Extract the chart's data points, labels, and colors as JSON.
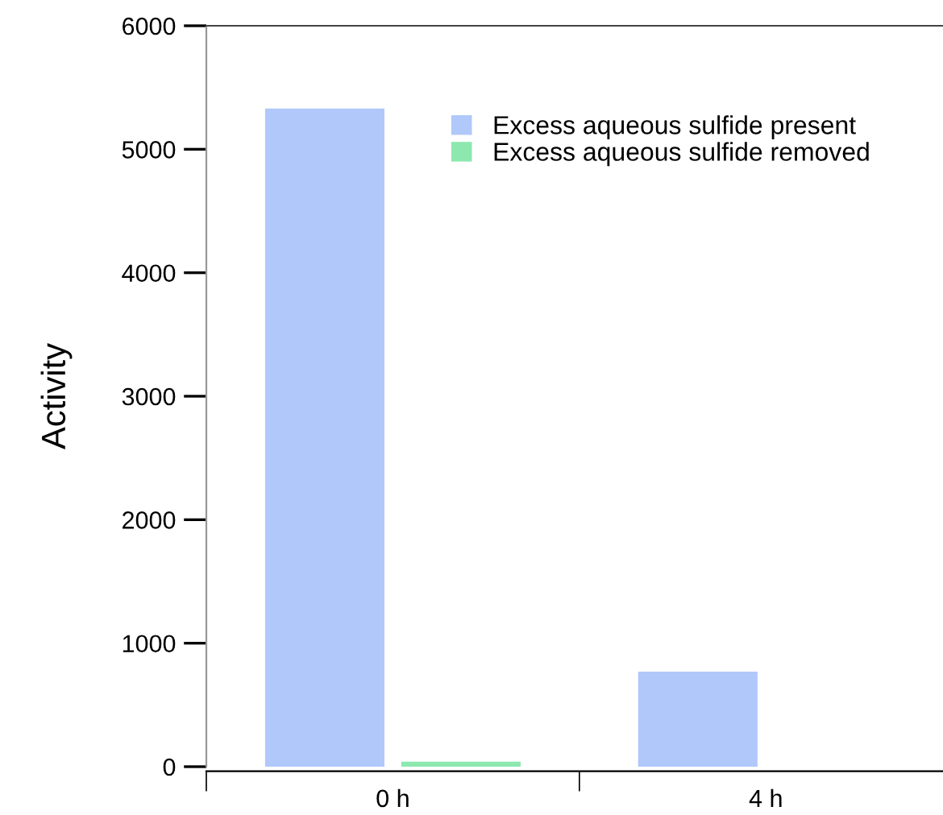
{
  "chart_data": {
    "type": "bar",
    "ylabel": "Activity",
    "categories": [
      "0 h",
      "4 h"
    ],
    "series": [
      {
        "name": "Excess aqueous sulfide present",
        "color": "#b0c8fa",
        "values": [
          5330,
          770
        ]
      },
      {
        "name": "Excess aqueous sulfide removed",
        "color": "#8de8b0",
        "values": [
          40,
          0
        ]
      }
    ],
    "ylim": [
      0,
      6000
    ],
    "yticks": [
      0,
      1000,
      2000,
      3000,
      4000,
      5000,
      6000
    ],
    "grid": false,
    "legend": "top right"
  }
}
